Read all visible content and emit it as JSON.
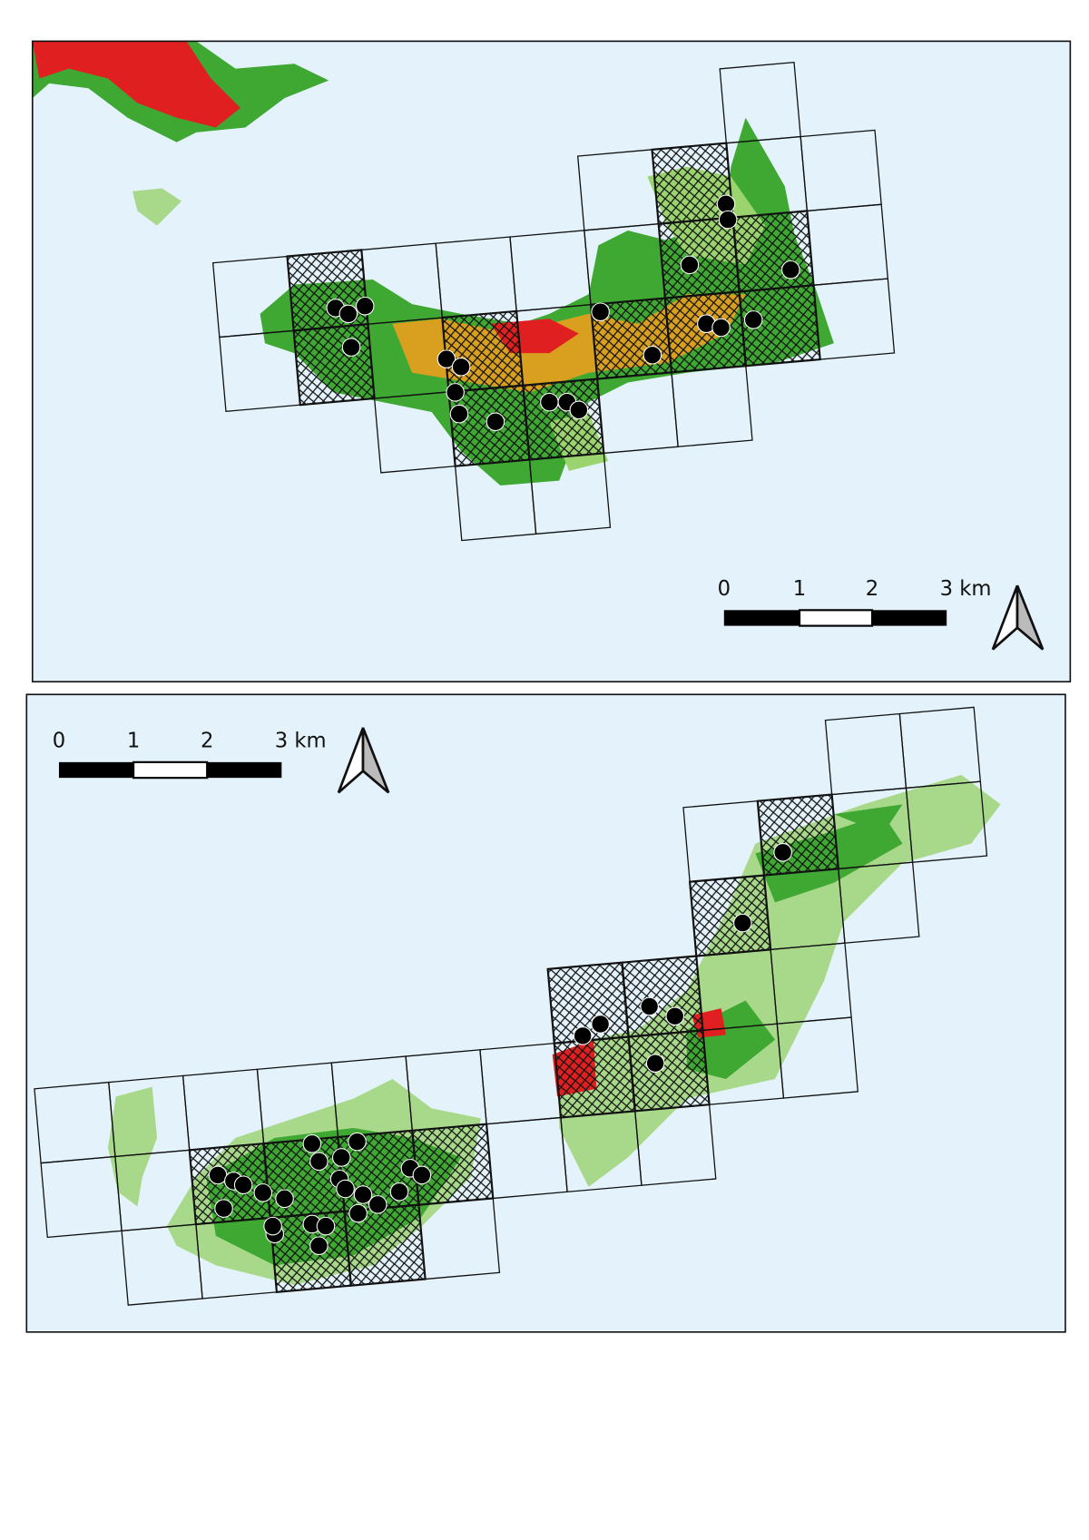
{
  "maps": [
    {
      "scale_bar": {
        "labels": [
          "0",
          "1",
          "2",
          "3 km"
        ]
      }
    },
    {
      "scale_bar": {
        "labels": [
          "0",
          "1",
          "2",
          "3 km"
        ]
      }
    }
  ]
}
